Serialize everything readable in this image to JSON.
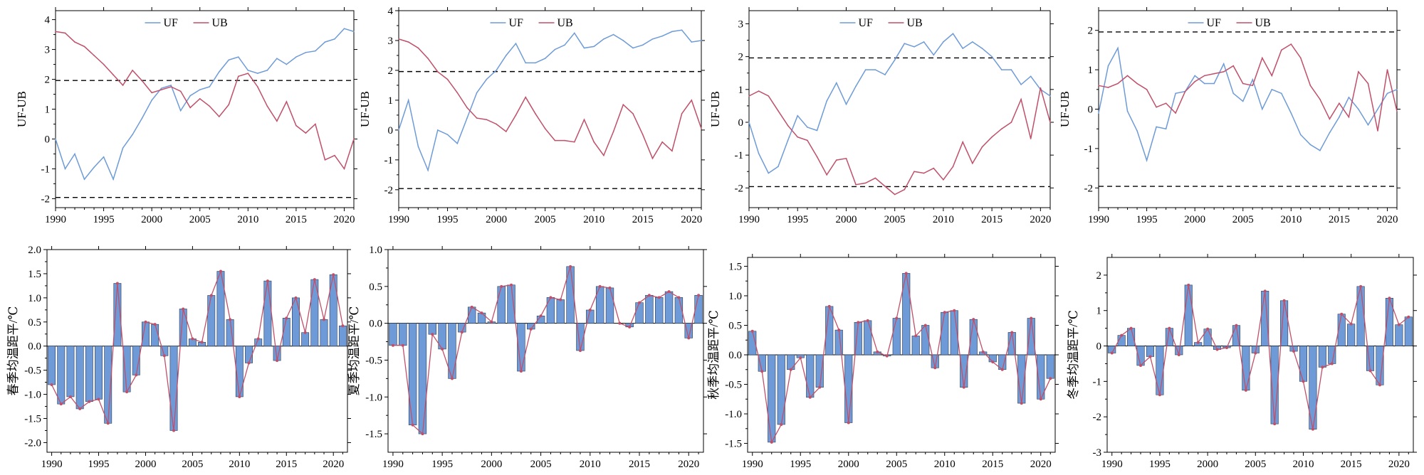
{
  "chart_data": [
    {
      "id": "mk-spring",
      "type": "line",
      "ylabel": "UF-UB",
      "xlim": [
        1990,
        2021
      ],
      "ylim": [
        -2.3,
        4.3
      ],
      "xticks": [
        1990,
        1995,
        2000,
        2005,
        2010,
        2015,
        2020
      ],
      "xtick_labels": [
        "1990",
        "1995",
        "2000",
        "2005",
        "2010",
        "2015",
        "2020"
      ],
      "yticks": [
        -2,
        -1,
        0,
        1,
        2,
        3,
        4
      ],
      "ytick_labels": [
        "-2",
        "-1",
        "0",
        "1",
        "2",
        "3",
        "4"
      ],
      "x": [
        1990,
        1991,
        1992,
        1993,
        1994,
        1995,
        1996,
        1997,
        1998,
        1999,
        2000,
        2001,
        2002,
        2003,
        2004,
        2005,
        2006,
        2007,
        2008,
        2009,
        2010,
        2011,
        2012,
        2013,
        2014,
        2015,
        2016,
        2017,
        2018,
        2019,
        2020,
        2021
      ],
      "series": [
        {
          "name": "UF",
          "color": "#6e9bd8",
          "values": [
            0.0,
            -1.0,
            -0.5,
            -1.35,
            -0.95,
            -0.6,
            -1.35,
            -0.3,
            0.15,
            0.7,
            1.3,
            1.7,
            1.8,
            0.95,
            1.45,
            1.65,
            1.75,
            2.25,
            2.65,
            2.75,
            2.3,
            2.2,
            2.3,
            2.7,
            2.5,
            2.75,
            2.9,
            2.95,
            3.25,
            3.35,
            3.7,
            3.6
          ]
        },
        {
          "name": "UB",
          "color": "#c0506a",
          "values": [
            3.6,
            3.55,
            3.25,
            3.1,
            2.8,
            2.5,
            2.15,
            1.8,
            2.3,
            1.95,
            1.55,
            1.65,
            1.75,
            1.6,
            1.05,
            1.35,
            1.1,
            0.75,
            1.15,
            2.1,
            2.2,
            1.75,
            1.1,
            0.6,
            1.25,
            0.45,
            0.2,
            0.5,
            -0.7,
            -0.55,
            -1.0,
            0.0
          ]
        }
      ],
      "legend": {
        "entries": [
          "UF",
          "UB"
        ],
        "placement": "top-center"
      },
      "reference_lines": [
        1.96,
        -1.96
      ]
    },
    {
      "id": "mk-summer",
      "type": "line",
      "ylabel": "UF-UB",
      "xlim": [
        1990,
        2021
      ],
      "ylim": [
        -2.6,
        4.0
      ],
      "xticks": [
        1990,
        1995,
        2000,
        2005,
        2010,
        2015,
        2020
      ],
      "xtick_labels": [
        "1990",
        "1995",
        "2000",
        "2005",
        "2010",
        "2015",
        "2020"
      ],
      "yticks": [
        -2,
        -1,
        0,
        1,
        2,
        3,
        4
      ],
      "ytick_labels": [
        "-2",
        "-1",
        "0",
        "1",
        "2",
        "3",
        "4"
      ],
      "x": [
        1990,
        1991,
        1992,
        1993,
        1994,
        1995,
        1996,
        1997,
        1998,
        1999,
        2000,
        2001,
        2002,
        2003,
        2004,
        2005,
        2006,
        2007,
        2008,
        2009,
        2010,
        2011,
        2012,
        2013,
        2014,
        2015,
        2016,
        2017,
        2018,
        2019,
        2020,
        2021
      ],
      "series": [
        {
          "name": "UF",
          "color": "#6e9bd8",
          "values": [
            0.0,
            1.0,
            -0.55,
            -1.35,
            0.0,
            -0.15,
            -0.45,
            0.4,
            1.25,
            1.7,
            2.0,
            2.5,
            2.9,
            2.25,
            2.25,
            2.4,
            2.7,
            2.85,
            3.25,
            2.75,
            2.8,
            3.05,
            3.2,
            3.0,
            2.75,
            2.85,
            3.05,
            3.15,
            3.3,
            3.35,
            2.95,
            3.0
          ]
        },
        {
          "name": "UB",
          "color": "#c0506a",
          "values": [
            3.05,
            2.95,
            2.75,
            2.4,
            1.95,
            1.7,
            1.25,
            0.75,
            0.4,
            0.35,
            0.2,
            -0.05,
            0.5,
            1.1,
            0.55,
            0.05,
            -0.35,
            -0.35,
            -0.4,
            0.35,
            -0.4,
            -0.85,
            -0.05,
            0.85,
            0.55,
            -0.15,
            -0.95,
            -0.4,
            -0.7,
            0.55,
            1.0,
            0.05
          ]
        }
      ],
      "legend": {
        "entries": [
          "UF",
          "UB"
        ],
        "placement": "top-center"
      },
      "reference_lines": [
        1.96,
        -1.96
      ]
    },
    {
      "id": "mk-autumn",
      "type": "line",
      "ylabel": "UF-UB",
      "xlim": [
        1990,
        2021
      ],
      "ylim": [
        -2.6,
        3.4
      ],
      "xticks": [
        1990,
        1995,
        2000,
        2005,
        2010,
        2015,
        2020
      ],
      "xtick_labels": [
        "1990",
        "1995",
        "2000",
        "2005",
        "2010",
        "2015",
        "2020"
      ],
      "yticks": [
        -2,
        -1,
        0,
        1,
        2,
        3
      ],
      "ytick_labels": [
        "-2",
        "-1",
        "0",
        "1",
        "2",
        "3"
      ],
      "x": [
        1990,
        1991,
        1992,
        1993,
        1994,
        1995,
        1996,
        1997,
        1998,
        1999,
        2000,
        2001,
        2002,
        2003,
        2004,
        2005,
        2006,
        2007,
        2008,
        2009,
        2010,
        2011,
        2012,
        2013,
        2014,
        2015,
        2016,
        2017,
        2018,
        2019,
        2020,
        2021
      ],
      "series": [
        {
          "name": "UF",
          "color": "#6e9bd8",
          "values": [
            0.0,
            -0.95,
            -1.55,
            -1.35,
            -0.55,
            0.2,
            -0.15,
            -0.25,
            0.65,
            1.2,
            0.55,
            1.1,
            1.6,
            1.6,
            1.45,
            1.9,
            2.4,
            2.3,
            2.45,
            2.05,
            2.45,
            2.7,
            2.25,
            2.45,
            2.25,
            2.0,
            1.6,
            1.6,
            1.15,
            1.4,
            1.0,
            0.8
          ]
        },
        {
          "name": "UB",
          "color": "#c0506a",
          "values": [
            0.8,
            0.95,
            0.8,
            0.35,
            -0.1,
            -0.45,
            -0.55,
            -1.05,
            -1.6,
            -1.15,
            -1.1,
            -1.9,
            -1.85,
            -1.7,
            -1.95,
            -2.2,
            -2.05,
            -1.5,
            -1.55,
            -1.4,
            -1.75,
            -1.35,
            -0.6,
            -1.25,
            -0.75,
            -0.45,
            -0.2,
            0.0,
            0.7,
            -0.5,
            1.05,
            0.0
          ]
        }
      ],
      "legend": {
        "entries": [
          "UF",
          "UB"
        ],
        "placement": "top-center"
      },
      "reference_lines": [
        1.96,
        -1.96
      ]
    },
    {
      "id": "mk-winter",
      "type": "line",
      "ylabel": "UF-UB",
      "xlim": [
        1990,
        2021
      ],
      "ylim": [
        -2.5,
        2.5
      ],
      "xticks": [
        1990,
        1995,
        2000,
        2005,
        2010,
        2015,
        2020
      ],
      "xtick_labels": [
        "1990",
        "1995",
        "2000",
        "2005",
        "2010",
        "2015",
        "2020"
      ],
      "yticks": [
        -2,
        -1,
        0,
        1,
        2
      ],
      "ytick_labels": [
        "-2",
        "-1",
        "0",
        "1",
        "2"
      ],
      "x": [
        1990,
        1991,
        1992,
        1993,
        1994,
        1995,
        1996,
        1997,
        1998,
        1999,
        2000,
        2001,
        2002,
        2003,
        2004,
        2005,
        2006,
        2007,
        2008,
        2009,
        2010,
        2011,
        2012,
        2013,
        2014,
        2015,
        2016,
        2017,
        2018,
        2019,
        2020,
        2021
      ],
      "series": [
        {
          "name": "UF",
          "color": "#6e9bd8",
          "values": [
            -0.1,
            1.1,
            1.55,
            -0.05,
            -0.55,
            -1.3,
            -0.45,
            -0.5,
            0.4,
            0.45,
            0.85,
            0.65,
            0.65,
            1.15,
            0.4,
            0.2,
            0.75,
            0.0,
            0.5,
            0.4,
            -0.1,
            -0.65,
            -0.9,
            -1.05,
            -0.6,
            -0.2,
            0.3,
            0.0,
            -0.4,
            0.0,
            0.4,
            0.5
          ]
        },
        {
          "name": "UB",
          "color": "#c0506a",
          "values": [
            0.6,
            0.55,
            0.65,
            0.85,
            0.65,
            0.5,
            0.05,
            0.15,
            -0.1,
            0.45,
            0.7,
            0.85,
            0.9,
            0.95,
            1.1,
            0.65,
            0.6,
            1.3,
            0.85,
            1.5,
            1.65,
            1.3,
            0.6,
            0.25,
            -0.25,
            0.15,
            -0.2,
            0.95,
            0.65,
            -0.55,
            1.0,
            -0.05
          ]
        }
      ],
      "legend": {
        "entries": [
          "UF",
          "UB"
        ],
        "placement": "top-center"
      },
      "reference_lines": [
        1.96,
        -1.96
      ]
    },
    {
      "id": "anom-spring",
      "type": "bar",
      "ylabel": "春季均温距平/℃",
      "xlim": [
        1989.5,
        2021.5
      ],
      "ylim": [
        -2.2,
        2.0
      ],
      "xticks": [
        1990,
        1995,
        2000,
        2005,
        2010,
        2015,
        2020
      ],
      "xtick_labels": [
        "1990",
        "1995",
        "2000",
        "2005",
        "2010",
        "2015",
        "2020"
      ],
      "yticks": [
        -2.0,
        -1.5,
        -1.0,
        -0.5,
        0.0,
        0.5,
        1.0,
        1.5,
        2.0
      ],
      "ytick_labels": [
        "-2.0",
        "-1.5",
        "-1.0",
        "-0.5",
        "0.0",
        "0.5",
        "1.0",
        "1.5",
        "2.0"
      ],
      "x": [
        1990,
        1991,
        1992,
        1993,
        1994,
        1995,
        1996,
        1997,
        1998,
        1999,
        2000,
        2001,
        2002,
        2003,
        2004,
        2005,
        2006,
        2007,
        2008,
        2009,
        2010,
        2011,
        2012,
        2013,
        2014,
        2015,
        2016,
        2017,
        2018,
        2019,
        2020,
        2021
      ],
      "values": [
        -0.8,
        -1.2,
        -1.05,
        -1.3,
        -1.15,
        -1.1,
        -1.6,
        1.3,
        -0.95,
        -0.6,
        0.5,
        0.45,
        -0.2,
        -1.75,
        0.77,
        0.15,
        0.08,
        1.05,
        1.55,
        0.55,
        -1.05,
        -0.35,
        0.15,
        1.35,
        -0.3,
        0.58,
        1.0,
        0.28,
        1.38,
        0.55,
        1.48,
        0.42
      ],
      "bar_color": "#6e9bd8",
      "line_color": "#c0506a"
    },
    {
      "id": "anom-summer",
      "type": "bar",
      "ylabel": "夏季均温距平/℃",
      "xlim": [
        1989.5,
        2021.5
      ],
      "ylim": [
        -1.75,
        1.0
      ],
      "xticks": [
        1990,
        1995,
        2000,
        2005,
        2010,
        2015,
        2020
      ],
      "xtick_labels": [
        "1990",
        "1995",
        "2000",
        "2005",
        "2010",
        "2015",
        "2020"
      ],
      "yticks": [
        -1.5,
        -1.0,
        -0.5,
        0.0,
        0.5,
        1.0
      ],
      "ytick_labels": [
        "-1.5",
        "-1.0",
        "-0.5",
        "0.0",
        "0.5",
        "1.0"
      ],
      "x": [
        1990,
        1991,
        1992,
        1993,
        1994,
        1995,
        1996,
        1997,
        1998,
        1999,
        2000,
        2001,
        2002,
        2003,
        2004,
        2005,
        2006,
        2007,
        2008,
        2009,
        2010,
        2011,
        2012,
        2013,
        2014,
        2015,
        2016,
        2017,
        2018,
        2019,
        2020,
        2021
      ],
      "values": [
        -0.3,
        -0.3,
        -1.38,
        -1.5,
        -0.15,
        -0.35,
        -0.75,
        -0.12,
        0.22,
        0.14,
        0.02,
        0.5,
        0.52,
        -0.65,
        -0.08,
        0.1,
        0.35,
        0.32,
        0.77,
        -0.37,
        0.18,
        0.5,
        0.48,
        0.0,
        -0.05,
        0.28,
        0.38,
        0.35,
        0.43,
        0.35,
        -0.2,
        0.38
      ],
      "bar_color": "#6e9bd8",
      "line_color": "#c0506a"
    },
    {
      "id": "anom-autumn",
      "type": "bar",
      "ylabel": "秋季均温距平/℃",
      "xlim": [
        1989.5,
        2021.5
      ],
      "ylim": [
        -1.65,
        1.65
      ],
      "xticks": [
        1990,
        1995,
        2000,
        2005,
        2010,
        2015,
        2020
      ],
      "xtick_labels": [
        "1990",
        "1995",
        "2000",
        "2005",
        "2010",
        "2015",
        "2020"
      ],
      "yticks": [
        -1.5,
        -1.0,
        -0.5,
        0.0,
        0.5,
        1.0,
        1.5
      ],
      "ytick_labels": [
        "-1.5",
        "-1.0",
        "-0.5",
        "0.0",
        "0.5",
        "1.0",
        "1.5"
      ],
      "x": [
        1990,
        1991,
        1992,
        1993,
        1994,
        1995,
        1996,
        1997,
        1998,
        1999,
        2000,
        2001,
        2002,
        2003,
        2004,
        2005,
        2006,
        2007,
        2008,
        2009,
        2010,
        2011,
        2012,
        2013,
        2014,
        2015,
        2016,
        2017,
        2018,
        2019,
        2020,
        2021
      ],
      "values": [
        0.4,
        -0.28,
        -1.48,
        -1.18,
        -0.25,
        -0.05,
        -0.72,
        -0.55,
        0.82,
        0.42,
        -1.15,
        0.55,
        0.58,
        0.05,
        -0.02,
        0.62,
        1.38,
        0.32,
        0.5,
        -0.22,
        0.72,
        0.75,
        -0.55,
        0.6,
        0.05,
        -0.12,
        -0.25,
        0.38,
        -0.82,
        0.62,
        -0.75,
        -0.4
      ],
      "bar_color": "#6e9bd8",
      "line_color": "#c0506a"
    },
    {
      "id": "anom-winter",
      "type": "bar",
      "ylabel": "冬季均温距平/℃",
      "xlim": [
        1989.5,
        2021.5
      ],
      "ylim": [
        -3.0,
        2.5
      ],
      "xticks": [
        1990,
        1995,
        2000,
        2005,
        2010,
        2015,
        2020
      ],
      "xtick_labels": [
        "1990",
        "1995",
        "2000",
        "2005",
        "2010",
        "2015",
        "2020"
      ],
      "yticks": [
        -3,
        -2,
        -1,
        0,
        1,
        2
      ],
      "ytick_labels": [
        "-3",
        "-2",
        "-1",
        "0",
        "1",
        "2"
      ],
      "x": [
        1990,
        1991,
        1992,
        1993,
        1994,
        1995,
        1996,
        1997,
        1998,
        1999,
        2000,
        2001,
        2002,
        2003,
        2004,
        2005,
        2006,
        2007,
        2008,
        2009,
        2010,
        2011,
        2012,
        2013,
        2014,
        2015,
        2016,
        2017,
        2018,
        2019,
        2020,
        2021
      ],
      "values": [
        -0.2,
        0.3,
        0.5,
        -0.55,
        -0.3,
        -1.38,
        0.5,
        -0.25,
        1.72,
        0.1,
        0.48,
        -0.1,
        -0.05,
        0.58,
        -1.25,
        -0.2,
        1.55,
        -2.2,
        1.28,
        -0.15,
        -1.0,
        -2.35,
        -0.6,
        -0.5,
        0.9,
        0.62,
        1.68,
        -0.7,
        -1.1,
        1.35,
        0.6,
        0.82
      ],
      "bar_color": "#6e9bd8",
      "line_color": "#c0506a"
    }
  ]
}
